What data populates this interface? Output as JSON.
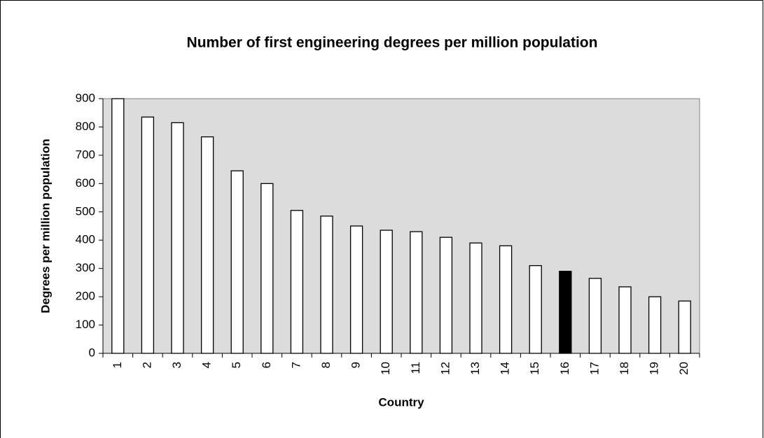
{
  "chart_data": {
    "type": "bar",
    "title": "Number of first engineering degrees per million population",
    "xlabel": "Country",
    "ylabel": "Degrees per million population",
    "categories": [
      "1",
      "2",
      "3",
      "4",
      "5",
      "6",
      "7",
      "8",
      "9",
      "10",
      "11",
      "12",
      "13",
      "14",
      "15",
      "16",
      "17",
      "18",
      "19",
      "20"
    ],
    "values": [
      900,
      835,
      815,
      765,
      645,
      600,
      505,
      485,
      450,
      435,
      430,
      410,
      390,
      380,
      310,
      290,
      265,
      235,
      200,
      185
    ],
    "colors": [
      "#ffffff",
      "#ffffff",
      "#ffffff",
      "#ffffff",
      "#ffffff",
      "#ffffff",
      "#ffffff",
      "#ffffff",
      "#ffffff",
      "#ffffff",
      "#ffffff",
      "#ffffff",
      "#ffffff",
      "#ffffff",
      "#ffffff",
      "#000000",
      "#ffffff",
      "#ffffff",
      "#ffffff",
      "#ffffff"
    ],
    "plot_background": "#dcdcdc",
    "ylim": [
      0,
      900
    ],
    "yticks": [
      0,
      100,
      200,
      300,
      400,
      500,
      600,
      700,
      800,
      900
    ],
    "grid": false
  }
}
